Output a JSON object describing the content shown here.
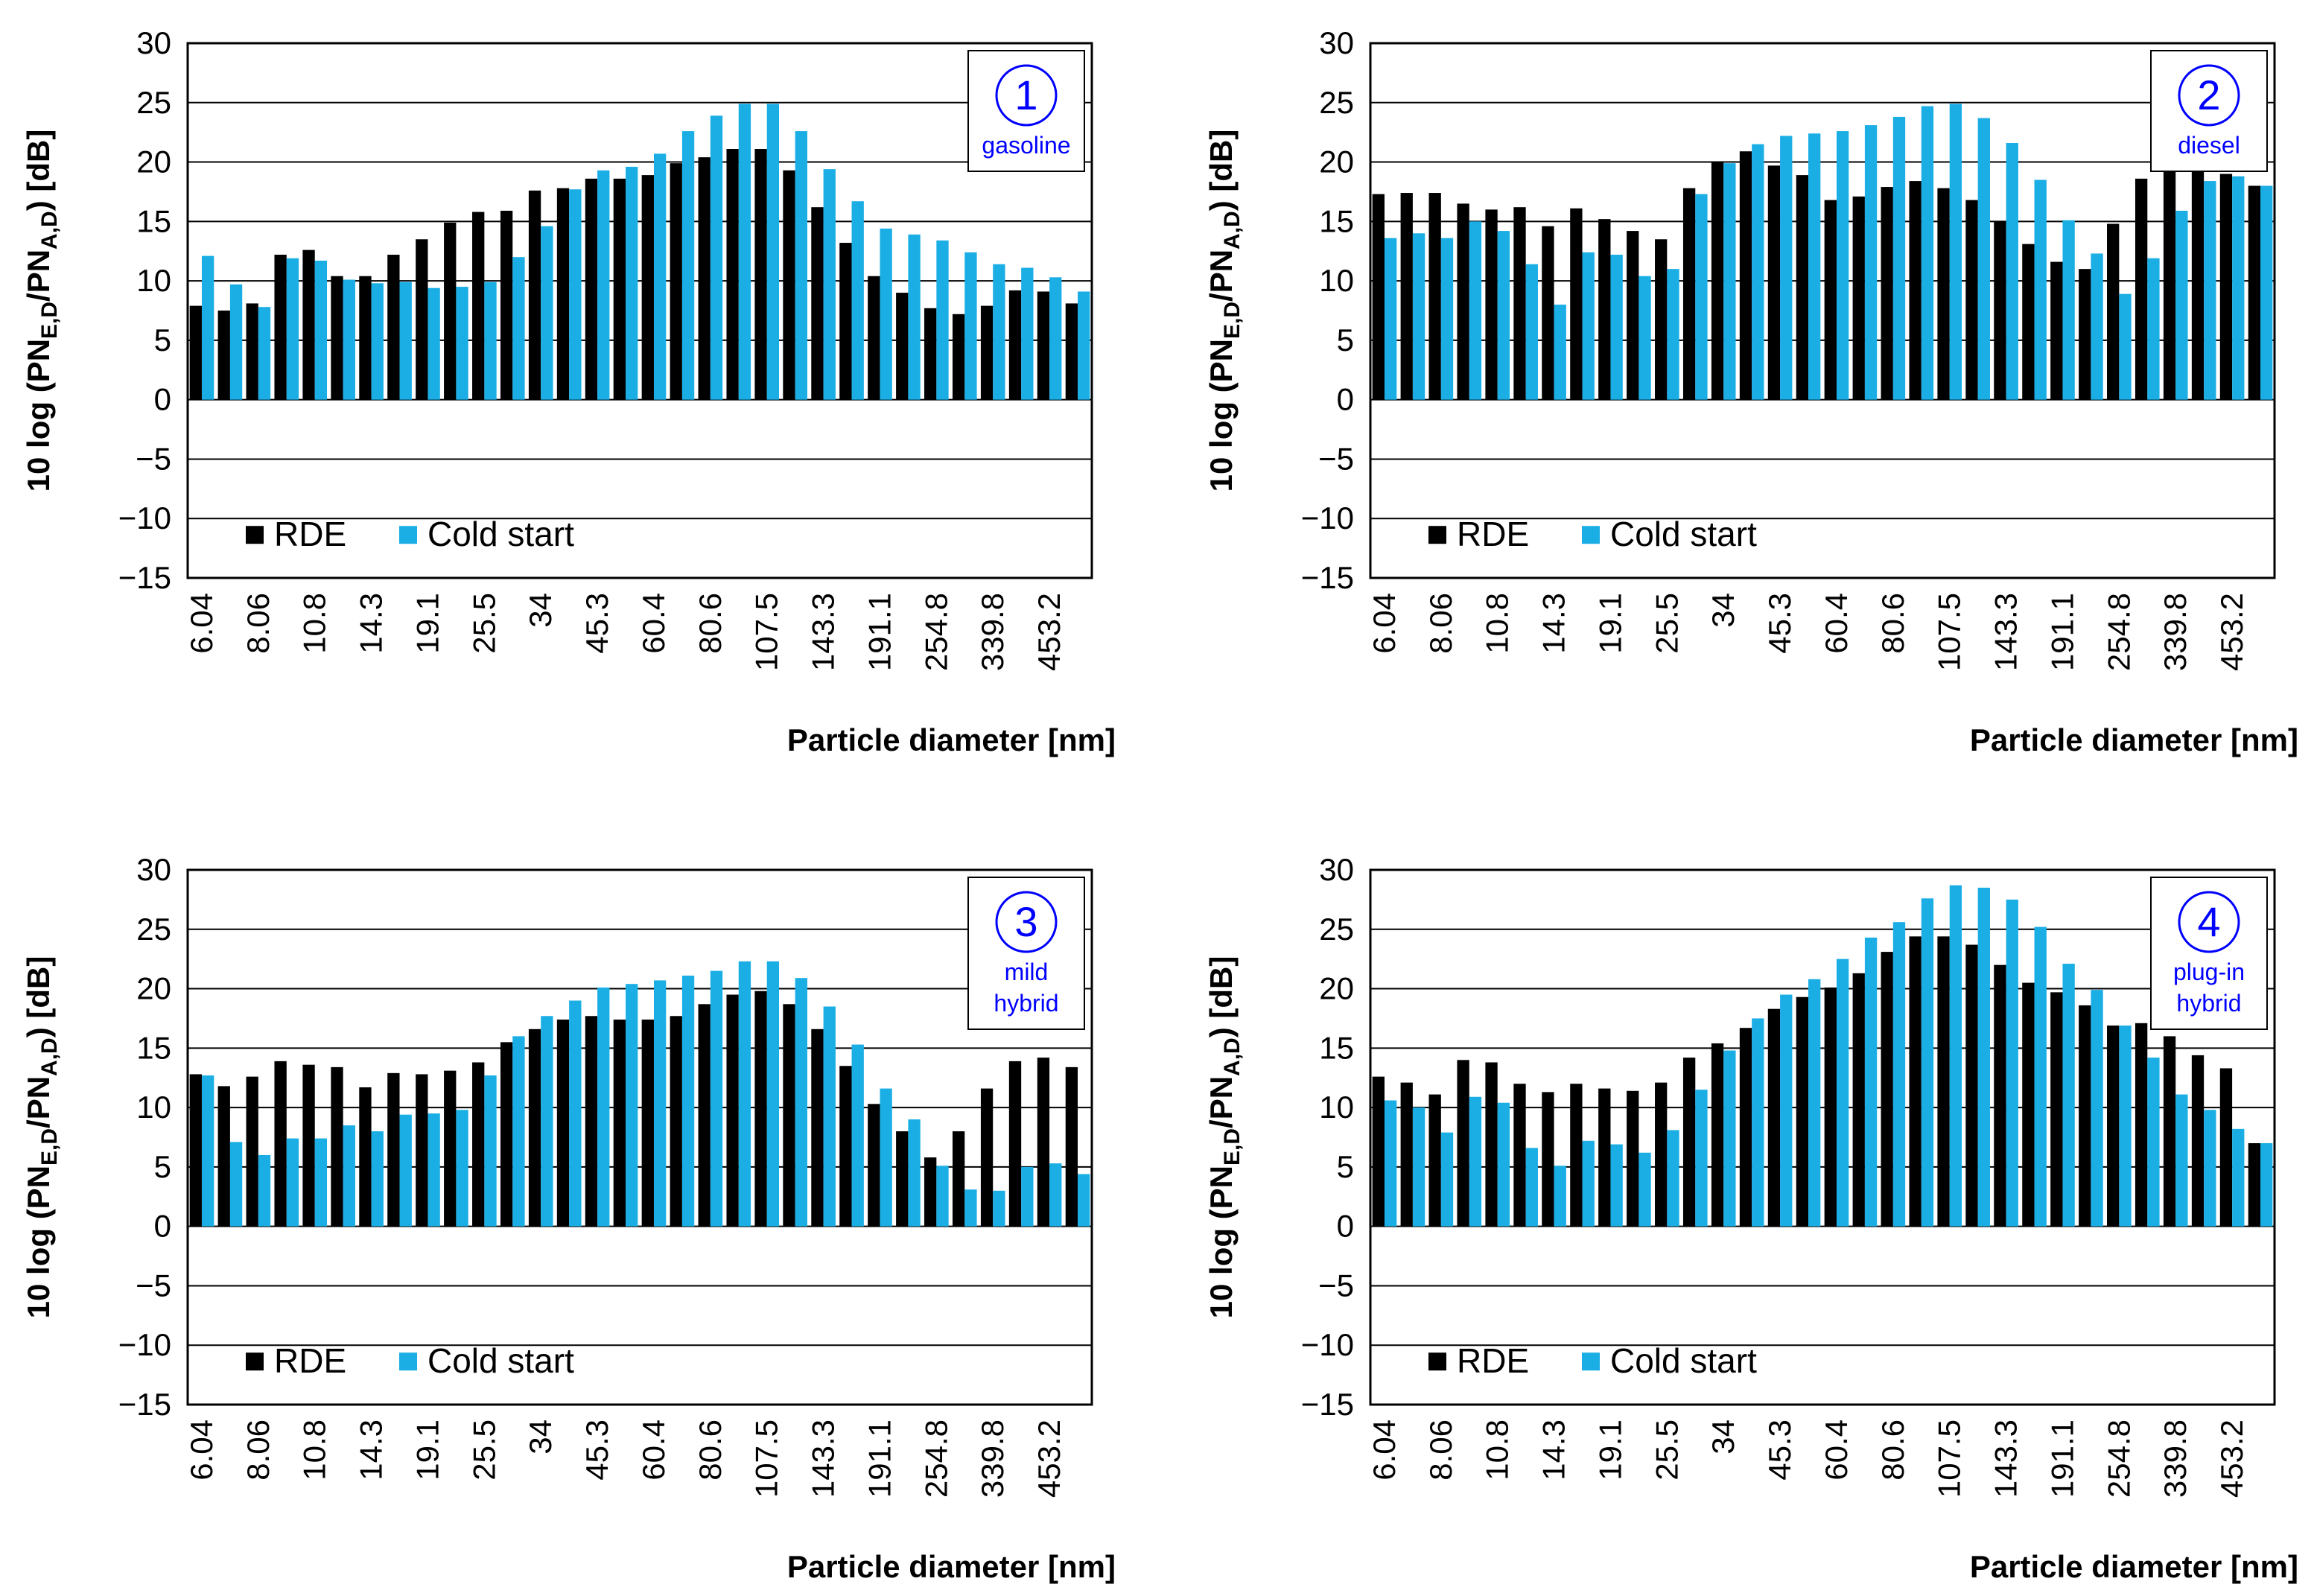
{
  "colors": {
    "rde": "#000000",
    "cold_start": "#1aaee5",
    "badge": "#0000ff",
    "grid": "#000000",
    "background": "#ffffff"
  },
  "chart_data": [
    {
      "type": "bar",
      "badge_number": "1",
      "badge_lines": [
        "gasoline"
      ],
      "ylabel": "10 log (PN_E,D/PN_A,D) [dB]",
      "ylabel_parts": [
        "10 log (PN",
        "E,D",
        "/PN",
        "A,D",
        ") [dB]"
      ],
      "xlabel": "Particle diameter [nm]",
      "ylim": [
        -15,
        30
      ],
      "yticks": [
        30,
        25,
        20,
        15,
        10,
        5,
        0,
        -5,
        -10,
        -15
      ],
      "ytick_labels": [
        "30",
        "25",
        "20",
        "15",
        "10",
        "5",
        "0",
        "−5",
        "−10",
        "−15"
      ],
      "xtick_labels": [
        "6.04",
        "8.06",
        "10.8",
        "14.3",
        "19.1",
        "25.5",
        "34",
        "45.3",
        "60.4",
        "80.6",
        "107.5",
        "143.3",
        "191.1",
        "254.8",
        "339.8",
        "453.2"
      ],
      "legend": {
        "position": "bottom-left",
        "entries": [
          "RDE",
          "Cold start"
        ]
      },
      "grid": "horizontal",
      "series": [
        {
          "name": "RDE",
          "values": [
            7.9,
            7.5,
            8.1,
            12.2,
            12.6,
            10.4,
            10.4,
            12.2,
            13.5,
            14.9,
            15.8,
            15.9,
            17.6,
            17.8,
            18.6,
            18.6,
            18.9,
            19.9,
            20.4,
            21.1,
            21.1,
            19.3,
            16.2,
            13.2,
            10.4,
            9.0,
            7.7,
            7.2,
            7.9,
            9.2,
            9.1,
            8.1
          ]
        },
        {
          "name": "Cold start",
          "values": [
            12.1,
            9.7,
            7.8,
            11.9,
            11.7,
            10.1,
            9.8,
            9.9,
            9.4,
            9.5,
            9.9,
            12.0,
            14.6,
            17.7,
            19.3,
            19.6,
            20.7,
            22.6,
            23.9,
            24.9,
            24.9,
            22.6,
            19.4,
            16.7,
            14.4,
            13.9,
            13.4,
            12.4,
            11.4,
            11.1,
            10.3,
            9.1
          ]
        }
      ]
    },
    {
      "type": "bar",
      "badge_number": "2",
      "badge_lines": [
        "diesel"
      ],
      "ylabel": "10 log (PN_E,D/PN_A,D) [dB]",
      "ylabel_parts": [
        "10 log (PN",
        "E,D",
        "/PN",
        "A,D",
        ") [dB]"
      ],
      "xlabel": "Particle diameter [nm]",
      "ylim": [
        -15,
        30
      ],
      "yticks": [
        30,
        25,
        20,
        15,
        10,
        5,
        0,
        -5,
        -10,
        -15
      ],
      "ytick_labels": [
        "30",
        "25",
        "20",
        "15",
        "10",
        "5",
        "0",
        "−5",
        "−10",
        "−15"
      ],
      "xtick_labels": [
        "6.04",
        "8.06",
        "10.8",
        "14.3",
        "19.1",
        "25.5",
        "34",
        "45.3",
        "60.4",
        "80.6",
        "107.5",
        "143.3",
        "191.1",
        "254.8",
        "339.8",
        "453.2"
      ],
      "legend": {
        "position": "bottom-left",
        "entries": [
          "RDE",
          "Cold start"
        ]
      },
      "grid": "horizontal",
      "series": [
        {
          "name": "RDE",
          "values": [
            17.3,
            17.4,
            17.4,
            16.5,
            16.0,
            16.2,
            14.6,
            16.1,
            15.2,
            14.2,
            13.5,
            17.8,
            20.0,
            20.9,
            19.7,
            18.9,
            16.8,
            17.1,
            17.9,
            18.4,
            17.8,
            16.8,
            15.0,
            13.1,
            11.6,
            11.0,
            14.8,
            18.6,
            19.4,
            19.4,
            19.0,
            18.0
          ]
        },
        {
          "name": "Cold start",
          "values": [
            13.6,
            14.0,
            13.6,
            15.0,
            14.2,
            11.4,
            8.0,
            12.4,
            12.2,
            10.4,
            11.0,
            17.3,
            19.9,
            21.5,
            22.2,
            22.4,
            22.6,
            23.1,
            23.8,
            24.7,
            24.9,
            23.7,
            21.6,
            18.5,
            15.1,
            12.3,
            8.9,
            11.9,
            15.9,
            18.4,
            18.8,
            18.0
          ]
        }
      ]
    },
    {
      "type": "bar",
      "badge_number": "3",
      "badge_lines": [
        "mild",
        "hybrid"
      ],
      "ylabel": "10 log (PN_E,D/PN_A,D) [dB]",
      "ylabel_parts": [
        "10 log (PN",
        "E,D",
        "/PN",
        "A,D",
        ") [dB]"
      ],
      "xlabel": "Particle diameter [nm]",
      "ylim": [
        -15,
        30
      ],
      "yticks": [
        30,
        25,
        20,
        15,
        10,
        5,
        0,
        -5,
        -10,
        -15
      ],
      "ytick_labels": [
        "30",
        "25",
        "20",
        "15",
        "10",
        "5",
        "0",
        "−5",
        "−10",
        "−15"
      ],
      "xtick_labels": [
        "6.04",
        "8.06",
        "10.8",
        "14.3",
        "19.1",
        "25.5",
        "34",
        "45.3",
        "60.4",
        "80.6",
        "107.5",
        "143.3",
        "191.1",
        "254.8",
        "339.8",
        "453.2"
      ],
      "legend": {
        "position": "bottom-left",
        "entries": [
          "RDE",
          "Cold start"
        ]
      },
      "grid": "horizontal",
      "series": [
        {
          "name": "RDE",
          "values": [
            12.8,
            11.8,
            12.6,
            13.9,
            13.6,
            13.4,
            11.7,
            12.9,
            12.8,
            13.1,
            13.8,
            15.5,
            16.6,
            17.4,
            17.7,
            17.4,
            17.4,
            17.7,
            18.7,
            19.5,
            19.8,
            18.7,
            16.6,
            13.5,
            10.3,
            8.0,
            5.8,
            8.0,
            11.6,
            13.9,
            14.2,
            13.4
          ]
        },
        {
          "name": "Cold start",
          "values": [
            12.7,
            7.1,
            6.0,
            7.4,
            7.4,
            8.5,
            8.0,
            9.4,
            9.5,
            9.8,
            12.7,
            16.0,
            17.7,
            19.0,
            20.1,
            20.4,
            20.7,
            21.1,
            21.5,
            22.3,
            22.3,
            20.9,
            18.5,
            15.3,
            11.6,
            9.0,
            5.1,
            3.1,
            3.0,
            5.0,
            5.3,
            4.4
          ]
        }
      ]
    },
    {
      "type": "bar",
      "badge_number": "4",
      "badge_lines": [
        "plug-in",
        "hybrid"
      ],
      "ylabel": "10 log (PN_E,D/PN_A,D) [dB]",
      "ylabel_parts": [
        "10 log (PN",
        "E,D",
        "/PN",
        "A,D",
        ") [dB]"
      ],
      "xlabel": "Particle diameter [nm]",
      "ylim": [
        -15,
        30
      ],
      "yticks": [
        30,
        25,
        20,
        15,
        10,
        5,
        0,
        -5,
        -10,
        -15
      ],
      "ytick_labels": [
        "30",
        "25",
        "20",
        "15",
        "10",
        "5",
        "0",
        "−5",
        "−10",
        "−15"
      ],
      "xtick_labels": [
        "6.04",
        "8.06",
        "10.8",
        "14.3",
        "19.1",
        "25.5",
        "34",
        "45.3",
        "60.4",
        "80.6",
        "107.5",
        "143.3",
        "191.1",
        "254.8",
        "339.8",
        "453.2"
      ],
      "legend": {
        "position": "bottom-left",
        "entries": [
          "RDE",
          "Cold start"
        ]
      },
      "grid": "horizontal",
      "series": [
        {
          "name": "RDE",
          "values": [
            12.6,
            12.1,
            11.1,
            14.0,
            13.8,
            12.0,
            11.3,
            12.0,
            11.6,
            11.4,
            12.1,
            14.2,
            15.4,
            16.7,
            18.3,
            19.3,
            20.1,
            21.3,
            23.1,
            24.4,
            24.4,
            23.7,
            22.0,
            20.5,
            19.7,
            18.6,
            16.9,
            17.1,
            16.0,
            14.4,
            13.3,
            7.0
          ]
        },
        {
          "name": "Cold start",
          "values": [
            10.6,
            10.0,
            7.9,
            10.9,
            10.4,
            6.6,
            5.1,
            7.2,
            6.9,
            6.2,
            8.1,
            11.5,
            14.8,
            17.5,
            19.5,
            20.8,
            22.5,
            24.3,
            25.6,
            27.6,
            28.7,
            28.5,
            27.5,
            25.2,
            22.1,
            19.9,
            16.9,
            14.2,
            11.1,
            9.8,
            8.2,
            7.0
          ]
        }
      ]
    }
  ]
}
